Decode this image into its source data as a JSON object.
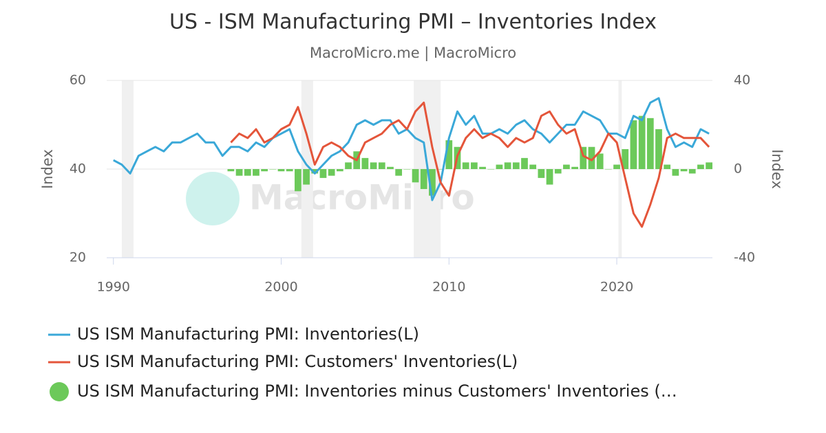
{
  "chart_data": {
    "type": "line",
    "title": "US - ISM Manufacturing PMI – Inventories Index",
    "subtitle": "MacroMicro.me | MacroMicro",
    "watermark": "MacroMicro",
    "y_label": "Index",
    "y2_label": "Index",
    "xlim": [
      1989.6,
      2025.7
    ],
    "xticks": [
      1990,
      2000,
      2010,
      2020
    ],
    "ylim": [
      20,
      60
    ],
    "yticks": [
      20,
      40,
      60
    ],
    "y2lim": [
      -40,
      40
    ],
    "y2ticks": [
      -40,
      0,
      40
    ],
    "grid": true,
    "recessions": [
      [
        1990.5,
        1991.2
      ],
      [
        2001.2,
        2001.9
      ],
      [
        2007.9,
        2009.5
      ],
      [
        2020.1,
        2020.3
      ]
    ],
    "x": [
      1990,
      1990.5,
      1991,
      1991.5,
      1992,
      1992.5,
      1993,
      1993.5,
      1994,
      1994.5,
      1995,
      1995.5,
      1996,
      1996.5,
      1997,
      1997.5,
      1998,
      1998.5,
      1999,
      1999.5,
      2000,
      2000.5,
      2001,
      2001.5,
      2002,
      2002.5,
      2003,
      2003.5,
      2004,
      2004.5,
      2005,
      2005.5,
      2006,
      2006.5,
      2007,
      2007.5,
      2008,
      2008.5,
      2009,
      2009.5,
      2010,
      2010.5,
      2011,
      2011.5,
      2012,
      2012.5,
      2013,
      2013.5,
      2014,
      2014.5,
      2015,
      2015.5,
      2016,
      2016.5,
      2017,
      2017.5,
      2018,
      2018.5,
      2019,
      2019.5,
      2020,
      2020.5,
      2021,
      2021.5,
      2022,
      2022.5,
      2023,
      2023.5,
      2024,
      2024.5,
      2025,
      2025.5
    ],
    "series": [
      {
        "name": "US ISM Manufacturing PMI: Inventories(L)",
        "color": "#3aa8d8",
        "kind": "line",
        "values": [
          42,
          41,
          39,
          43,
          44,
          45,
          44,
          46,
          46,
          47,
          48,
          46,
          46,
          43,
          45,
          45,
          44,
          46,
          45,
          47,
          48,
          49,
          44,
          41,
          39,
          41,
          43,
          44,
          46,
          50,
          51,
          50,
          51,
          51,
          48,
          49,
          47,
          46,
          33,
          37,
          47,
          53,
          50,
          52,
          48,
          48,
          49,
          48,
          50,
          51,
          49,
          48,
          46,
          48,
          50,
          50,
          53,
          52,
          51,
          48,
          48,
          47,
          52,
          51,
          55,
          56,
          49,
          45,
          46,
          45,
          49,
          48
        ]
      },
      {
        "name": "US ISM Manufacturing PMI: Customers' Inventories(L)",
        "color": "#e4553a",
        "kind": "line",
        "values": [
          null,
          null,
          null,
          null,
          null,
          null,
          null,
          null,
          null,
          null,
          null,
          null,
          null,
          null,
          46,
          48,
          47,
          49,
          46,
          47,
          49,
          50,
          54,
          48,
          41,
          45,
          46,
          45,
          43,
          42,
          46,
          47,
          48,
          50,
          51,
          49,
          53,
          55,
          45,
          37,
          34,
          43,
          47,
          49,
          47,
          48,
          47,
          45,
          47,
          46,
          47,
          52,
          53,
          50,
          48,
          49,
          43,
          42,
          44,
          48,
          46,
          38,
          30,
          27,
          32,
          38,
          47,
          48,
          47,
          47,
          47,
          45
        ]
      },
      {
        "name": "US ISM Manufacturing PMI: Inventories minus Customers' Inventories (…",
        "color": "#6cc95a",
        "kind": "bar",
        "axis": "y2",
        "values": [
          null,
          null,
          null,
          null,
          null,
          null,
          null,
          null,
          null,
          null,
          null,
          null,
          null,
          null,
          -1,
          -3,
          -3,
          -3,
          -1,
          0,
          -1,
          -1,
          -10,
          -7,
          -2,
          -4,
          -3,
          -1,
          3,
          8,
          5,
          3,
          3,
          1,
          -3,
          0,
          -6,
          -9,
          -12,
          0,
          13,
          10,
          3,
          3,
          1,
          0,
          2,
          3,
          3,
          5,
          2,
          -4,
          -7,
          -2,
          2,
          1,
          10,
          10,
          7,
          0,
          2,
          9,
          22,
          24,
          23,
          18,
          2,
          -3,
          -1,
          -2,
          2,
          3
        ]
      }
    ]
  }
}
